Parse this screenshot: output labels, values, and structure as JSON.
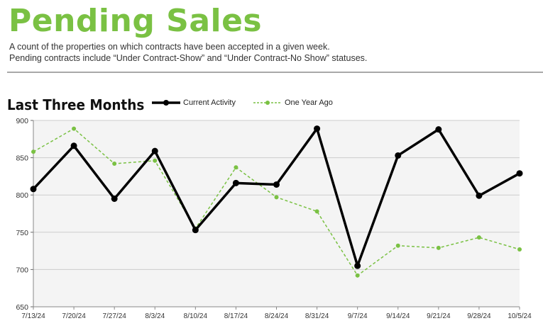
{
  "header": {
    "title": "Pending Sales",
    "subtitle_line1": "A count of the properties on which contracts have been accepted in a given week.",
    "subtitle_line2": "Pending contracts include “Under Contract-Show” and “Under Contract-No Show” statuses."
  },
  "section_title": "Last Three Months",
  "colors": {
    "title": "#7ac143",
    "current": "#000000",
    "prior": "#7ac143",
    "plot_bg": "#f4f4f4",
    "grid": "#cccccc"
  },
  "chart_data": {
    "type": "line",
    "title": "Last Three Months",
    "xlabel": "",
    "ylabel": "",
    "ylim": [
      650,
      900
    ],
    "yticks": [
      650,
      700,
      750,
      800,
      850,
      900
    ],
    "grid": true,
    "legend_position": "top",
    "categories": [
      "7/13/24",
      "7/20/24",
      "7/27/24",
      "8/3/24",
      "8/10/24",
      "8/17/24",
      "8/24/24",
      "8/31/24",
      "9/7/24",
      "9/14/24",
      "9/21/24",
      "9/28/24",
      "10/5/24"
    ],
    "series": [
      {
        "name": "Current Activity",
        "style": "solid",
        "values": [
          808,
          866,
          795,
          859,
          753,
          816,
          814,
          889,
          705,
          853,
          888,
          799,
          829
        ]
      },
      {
        "name": "One Year Ago",
        "style": "dashed",
        "values": [
          858,
          889,
          842,
          846,
          755,
          837,
          797,
          778,
          692,
          732,
          729,
          743,
          727
        ]
      }
    ]
  }
}
